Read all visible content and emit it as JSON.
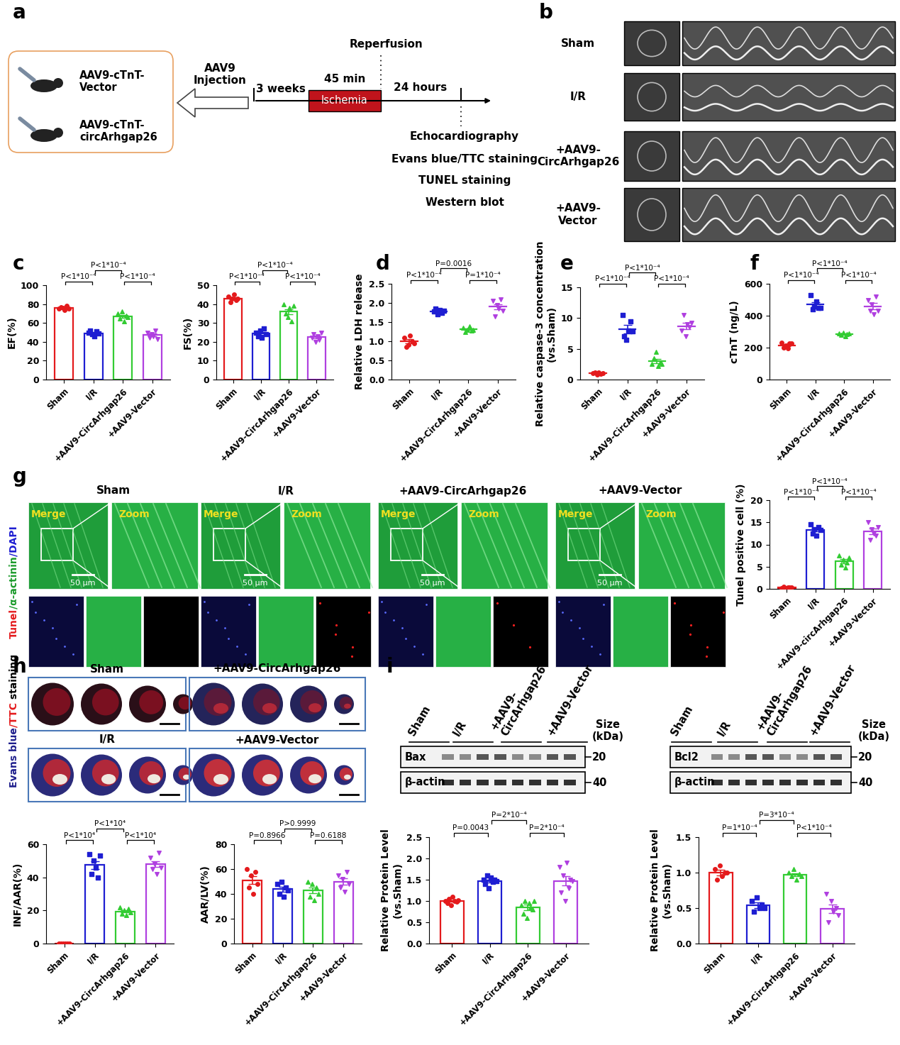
{
  "panel_labels": [
    "a",
    "b",
    "c",
    "d",
    "e",
    "f",
    "g",
    "h",
    "i"
  ],
  "diagram_a": {
    "groups": [
      "AAV9-cTnT-\nVector",
      "AAV9-cTnT-\ncircArhgap26"
    ],
    "injection": "AAV9\nInjection",
    "before": "3 weeks",
    "ischemia_time": "45 min",
    "ischemia": "Ischemia",
    "reperfusion": "Reperfusion",
    "after": "24 hours",
    "readouts": [
      "Echocardiography",
      "Evans blue/TTC staining",
      "TUNEL staining",
      "Western blot"
    ]
  },
  "echo_b": {
    "rows": [
      "Sham",
      "I/R",
      "+AAV9-\nCircArhgap26",
      "+AAV9-\nVector"
    ]
  },
  "tunel_g": {
    "columns": [
      "Sham",
      "I/R",
      "+AAV9-CircArhgap26",
      "+AAV9-Vector"
    ],
    "merge": "Merge",
    "zoom": "Zoom",
    "scale": "50 μm",
    "stain_parts": [
      {
        "text": "Tunel",
        "color": "#E41A1C"
      },
      {
        "text": "/α-actinin",
        "color": "#1a9a2a"
      },
      {
        "text": "/DAPI",
        "color": "#1E1ED2"
      }
    ]
  },
  "hearts_h": {
    "groups": [
      "Sham",
      "+AAV9-CircArhgap26",
      "I/R",
      "+AAV9-Vector"
    ],
    "stain_parts": [
      {
        "text": "Evans blue",
        "color": "#1E1E8C"
      },
      {
        "text": "/TTC",
        "color": "#E41A1C"
      },
      {
        "text": " staining",
        "color": "#000000"
      }
    ]
  },
  "blots_i": [
    {
      "lanes": [
        "Sham",
        "I/R",
        "+AAV9-\nCircArhgap26",
        "+AAV9-Vector"
      ],
      "protein": "Bax",
      "loading": "β-actin",
      "size_title": "Size\n(kDa)",
      "protein_size": "20",
      "loading_size": "40"
    },
    {
      "lanes": [
        "Sham",
        "I/R",
        "+AAV9-\nCircArhgap26",
        "+AAV9-Vector"
      ],
      "protein": "Bcl2",
      "loading": "β-actin",
      "size_title": "Size\n(kDa)",
      "protein_size": "20",
      "loading_size": "40"
    }
  ],
  "chart_data": [
    {
      "type": "bar",
      "ylabel": "EF(%)",
      "categories": [
        "Sham",
        "I/R",
        "+AAV9-CircArhgap26",
        "+AAV9-Vector"
      ],
      "values": [
        76,
        49,
        67,
        47.5
      ],
      "sem": [
        0.8,
        1.0,
        1.7,
        1.4
      ],
      "points": [
        [
          75,
          77,
          76,
          74,
          78,
          75
        ],
        [
          50,
          52,
          48,
          46,
          51,
          49
        ],
        [
          70,
          65,
          72,
          62,
          68,
          66
        ],
        [
          50,
          44,
          48,
          46,
          52,
          43
        ]
      ],
      "colors": [
        "#E41A1C",
        "#1E1ED2",
        "#33CC33",
        "#B040E0"
      ],
      "markers": [
        "circle",
        "square",
        "triangle_up",
        "triangle_down"
      ],
      "ylim": [
        0,
        100
      ],
      "yticks": [
        0,
        20,
        40,
        60,
        80,
        100
      ],
      "grid": false,
      "comparisons": [
        {
          "pair": [
            0,
            1
          ],
          "label": "P<1*10⁻⁴"
        },
        {
          "pair": [
            1,
            2
          ],
          "label": "P<1*10⁻⁴"
        },
        {
          "pair": [
            2,
            3
          ],
          "label": "P<1*10⁻⁴"
        }
      ]
    },
    {
      "type": "bar",
      "ylabel": "FS(%)",
      "categories": [
        "Sham",
        "I/R",
        "+AAV9-CircArhgap26",
        "+AAV9-Vector"
      ],
      "values": [
        43,
        24.5,
        36,
        22.5
      ],
      "sem": [
        0.6,
        0.8,
        1.4,
        0.7
      ],
      "points": [
        [
          44,
          41,
          43,
          45,
          42,
          43
        ],
        [
          25,
          23,
          26,
          22,
          27,
          24
        ],
        [
          40,
          35,
          33,
          38,
          31,
          39
        ],
        [
          22,
          24,
          20,
          23,
          21,
          25
        ]
      ],
      "colors": [
        "#E41A1C",
        "#1E1ED2",
        "#33CC33",
        "#B040E0"
      ],
      "markers": [
        "circle",
        "square",
        "triangle_up",
        "triangle_down"
      ],
      "ylim": [
        0,
        50
      ],
      "yticks": [
        0,
        10,
        20,
        30,
        40,
        50
      ],
      "grid": false,
      "comparisons": [
        {
          "pair": [
            0,
            1
          ],
          "label": "P<1*10⁻⁴"
        },
        {
          "pair": [
            1,
            2
          ],
          "label": "P<1*10⁻⁴"
        },
        {
          "pair": [
            2,
            3
          ],
          "label": "P<1*10⁻⁴"
        }
      ]
    },
    {
      "type": "scatter",
      "ylabel": "Relative LDH release",
      "categories": [
        "Sham",
        "I/R",
        "+AAV9-CircArhgap26",
        "+AAV9-Vector"
      ],
      "values": [
        1.0,
        1.78,
        1.31,
        1.9
      ],
      "sem": [
        0.05,
        0.02,
        0.02,
        0.07
      ],
      "points": [
        [
          1.1,
          0.85,
          0.9,
          1.15,
          1.0,
          0.95
        ],
        [
          1.78,
          1.85,
          1.7,
          1.82,
          1.75,
          1.8
        ],
        [
          1.35,
          1.25,
          1.3,
          1.38,
          1.28,
          1.3
        ],
        [
          2.05,
          1.65,
          1.95,
          1.85,
          2.1,
          1.8
        ]
      ],
      "colors": [
        "#E41A1C",
        "#1E1ED2",
        "#33CC33",
        "#B040E0"
      ],
      "markers": [
        "circle",
        "square",
        "triangle_up",
        "triangle_down"
      ],
      "ylim": [
        0,
        2.5
      ],
      "yticks": [
        {
          "value": 0,
          "label": "0.0"
        },
        0.5,
        {
          "value": 1,
          "label": "1.0"
        },
        1.5,
        {
          "value": 2,
          "label": "2.0"
        },
        2.5
      ],
      "grid": false,
      "comparisons": [
        {
          "pair": [
            0,
            1
          ],
          "label": "P<1*10⁻⁴"
        },
        {
          "pair": [
            1,
            2
          ],
          "label": "P=0.0016"
        },
        {
          "pair": [
            2,
            3
          ],
          "label": "P=1*10⁻⁴"
        }
      ]
    },
    {
      "type": "scatter",
      "ylabel": "Relative caspase-3 concentration\n(vs.Sham)",
      "categories": [
        "Sham",
        "I/R",
        "+AAV9-CircArhgap26",
        "+AAV9-Vector"
      ],
      "values": [
        1.0,
        8.2,
        3.0,
        8.7
      ],
      "sem": [
        0.06,
        0.7,
        0.4,
        0.5
      ],
      "points": [
        [
          1.0,
          1.2,
          0.8,
          1.1,
          0.9,
          1.0
        ],
        [
          10.5,
          7.0,
          6.5,
          8.0,
          9.5,
          7.8
        ],
        [
          2.5,
          3.5,
          4.5,
          2.2,
          2.8,
          2.5
        ],
        [
          8.0,
          10.5,
          7.0,
          9.0,
          8.5,
          9.2
        ]
      ],
      "colors": [
        "#E41A1C",
        "#1E1ED2",
        "#33CC33",
        "#B040E0"
      ],
      "markers": [
        "circle",
        "square",
        "triangle_up",
        "triangle_down"
      ],
      "ylim": [
        0,
        15
      ],
      "yticks": [
        0,
        5,
        10,
        15
      ],
      "grid": false,
      "comparisons": [
        {
          "pair": [
            0,
            1
          ],
          "label": "P<1*10⁻⁴"
        },
        {
          "pair": [
            1,
            2
          ],
          "label": "P<1*10⁻⁴"
        },
        {
          "pair": [
            2,
            3
          ],
          "label": "P<1*10⁻⁴"
        }
      ]
    },
    {
      "type": "scatter",
      "ylabel": "cTnT (ng/L)",
      "categories": [
        "Sham",
        "I/R",
        "+AAV9-CircArhgap26",
        "+AAV9-Vector"
      ],
      "values": [
        215,
        470,
        285,
        460
      ],
      "sem": [
        6,
        14,
        4,
        18
      ],
      "points": [
        [
          230,
          200,
          215,
          195,
          225,
          225
        ],
        [
          530,
          440,
          460,
          490,
          450,
          450
        ],
        [
          290,
          280,
          295,
          270,
          285,
          290
        ],
        [
          500,
          430,
          470,
          410,
          520,
          430
        ]
      ],
      "colors": [
        "#E41A1C",
        "#1E1ED2",
        "#33CC33",
        "#B040E0"
      ],
      "markers": [
        "circle",
        "square",
        "triangle_up",
        "triangle_down"
      ],
      "ylim": [
        0,
        600
      ],
      "yticks": [
        0,
        200,
        400,
        600
      ],
      "grid": false,
      "comparisons": [
        {
          "pair": [
            0,
            1
          ],
          "label": "P<1*10⁻⁴"
        },
        {
          "pair": [
            1,
            2
          ],
          "label": "P<1*10⁻⁴"
        },
        {
          "pair": [
            2,
            3
          ],
          "label": "P<1*10⁻⁴"
        }
      ]
    },
    {
      "type": "bar",
      "ylabel": "Tunel positive cell (%)",
      "categories": [
        "Sham",
        "I/R",
        "+AAV9-circArhgap26",
        "+AAV9-Vector"
      ],
      "values": [
        0.3,
        13.3,
        6.2,
        13.0
      ],
      "sem": [
        0.1,
        0.4,
        0.5,
        0.6
      ],
      "points": [
        [
          0.2,
          0.5,
          0.1,
          0.3,
          0.4,
          0.3
        ],
        [
          14.5,
          12.5,
          13.5,
          12.0,
          14.0,
          13.3
        ],
        [
          7.5,
          5.5,
          6.5,
          4.8,
          6.0,
          7.0
        ],
        [
          15.0,
          11.0,
          13.5,
          12.5,
          12.0,
          14.0
        ]
      ],
      "colors": [
        "#E41A1C",
        "#1E1ED2",
        "#33CC33",
        "#B040E0"
      ],
      "markers": [
        "circle",
        "square",
        "triangle_up",
        "triangle_down"
      ],
      "ylim": [
        0,
        20
      ],
      "yticks": [
        0,
        5,
        10,
        15,
        20
      ],
      "grid": false,
      "comparisons": [
        {
          "pair": [
            0,
            1
          ],
          "label": "P<1*10⁻⁴"
        },
        {
          "pair": [
            1,
            2
          ],
          "label": "P<1*10⁻⁴"
        },
        {
          "pair": [
            2,
            3
          ],
          "label": "P<1*10⁻⁴"
        }
      ]
    },
    {
      "type": "bar",
      "ylabel": "INF/AAR(%)",
      "categories": [
        "Sham",
        "I/R",
        "+AAV9-CircArhgap26",
        "+AAV9-Vector"
      ],
      "values": [
        0,
        47.5,
        19.5,
        48
      ],
      "sem": [
        0,
        2.3,
        0.8,
        1.9
      ],
      "points": [
        [
          0,
          0,
          0,
          0,
          0,
          0
        ],
        [
          54,
          42,
          50,
          46,
          40,
          53
        ],
        [
          22,
          18,
          20,
          17,
          21,
          19
        ],
        [
          52,
          45,
          48,
          42,
          55,
          46
        ]
      ],
      "colors": [
        "#E41A1C",
        "#1E1ED2",
        "#33CC33",
        "#B040E0"
      ],
      "markers": [
        "circle",
        "square",
        "triangle_up",
        "triangle_down"
      ],
      "ylim": [
        0,
        60
      ],
      "yticks": [
        0,
        20,
        40,
        60
      ],
      "grid": false,
      "comparisons": [
        {
          "pair": [
            0,
            1
          ],
          "label": "P<1*10⁴"
        },
        {
          "pair": [
            1,
            2
          ],
          "label": "P<1*10⁴"
        },
        {
          "pair": [
            2,
            3
          ],
          "label": "P<1*10⁴"
        }
      ]
    },
    {
      "type": "bar",
      "ylabel": "AAR/LV(%)",
      "categories": [
        "Sham",
        "I/R",
        "+AAV9-CircArhgap26",
        "+AAV9-Vector"
      ],
      "values": [
        51,
        44,
        42.7,
        50
      ],
      "sem": [
        3.2,
        2.0,
        2.3,
        2.4
      ],
      "points": [
        [
          60,
          45,
          55,
          40,
          58,
          48
        ],
        [
          48,
          40,
          50,
          38,
          45,
          43
        ],
        [
          50,
          38,
          48,
          35,
          45,
          40
        ],
        [
          55,
          45,
          52,
          42,
          58,
          48
        ]
      ],
      "colors": [
        "#E41A1C",
        "#1E1ED2",
        "#33CC33",
        "#B040E0"
      ],
      "markers": [
        "circle",
        "square",
        "triangle_up",
        "triangle_down"
      ],
      "ylim": [
        0,
        80
      ],
      "yticks": [
        0,
        20,
        40,
        60,
        80
      ],
      "grid": false,
      "comparisons": [
        {
          "pair": [
            0,
            1
          ],
          "label": "P=0.8966"
        },
        {
          "pair": [
            1,
            2
          ],
          "label": "P>0.9999"
        },
        {
          "pair": [
            2,
            3
          ],
          "label": "P=0.6188"
        }
      ]
    },
    {
      "type": "bar",
      "ylabel": "Relative Protein Level\n(vs.Sham)",
      "categories": [
        "Sham",
        "I/R",
        "+AAV9-CircArhgap26",
        "+AAV9-Vector"
      ],
      "values": [
        1.0,
        1.47,
        0.85,
        1.47
      ],
      "sem": [
        0.02,
        0.03,
        0.06,
        0.11
      ],
      "points": [
        [
          1.0,
          0.95,
          1.05,
          0.9,
          1.1,
          1.0,
          0.98,
          1.02
        ],
        [
          1.5,
          1.4,
          1.6,
          1.3,
          1.55,
          1.45,
          1.5,
          1.46
        ],
        [
          0.9,
          0.7,
          1.0,
          0.6,
          0.95,
          0.85,
          0.8,
          1.0
        ],
        [
          1.8,
          1.2,
          1.6,
          1.0,
          1.9,
          1.3,
          1.5,
          1.46
        ]
      ],
      "colors": [
        "#E41A1C",
        "#1E1ED2",
        "#33CC33",
        "#B040E0"
      ],
      "markers": [
        "circle",
        "square",
        "triangle_up",
        "triangle_down"
      ],
      "ylim": [
        0,
        2.5
      ],
      "yticks": [
        {
          "value": 0,
          "label": "0.0"
        },
        0.5,
        {
          "value": 1,
          "label": "1.0"
        },
        1.5,
        {
          "value": 2,
          "label": "2.0"
        },
        2.5
      ],
      "grid": false,
      "comparisons": [
        {
          "pair": [
            0,
            1
          ],
          "label": "P=0.0043"
        },
        {
          "pair": [
            1,
            2
          ],
          "label": "P=2*10⁻⁴"
        },
        {
          "pair": [
            2,
            3
          ],
          "label": "P=2*10⁻⁴"
        }
      ]
    },
    {
      "type": "bar",
      "ylabel": "Relative Protein Level\n(vs.Sham)",
      "categories": [
        "Sham",
        "I/R",
        "+AAV9-CircArhgap26",
        "+AAV9-Vector"
      ],
      "values": [
        1.0,
        0.54,
        0.97,
        0.49
      ],
      "sem": [
        0.04,
        0.04,
        0.02,
        0.06
      ],
      "points": [
        [
          1.05,
          0.9,
          1.1,
          0.95,
          1.0,
          1.0
        ],
        [
          0.6,
          0.45,
          0.65,
          0.5,
          0.55,
          0.5
        ],
        [
          1.0,
          0.95,
          1.05,
          0.9,
          0.98,
          0.95
        ],
        [
          0.7,
          0.3,
          0.6,
          0.45,
          0.5,
          0.4
        ]
      ],
      "colors": [
        "#E41A1C",
        "#1E1ED2",
        "#33CC33",
        "#B040E0"
      ],
      "markers": [
        "circle",
        "square",
        "triangle_up",
        "triangle_down"
      ],
      "ylim": [
        0,
        1.5
      ],
      "yticks": [
        {
          "value": 0,
          "label": "0.0"
        },
        0.5,
        {
          "value": 1,
          "label": "1.0"
        },
        1.5
      ],
      "grid": false,
      "comparisons": [
        {
          "pair": [
            0,
            1
          ],
          "label": "P=1*10⁻⁴"
        },
        {
          "pair": [
            1,
            2
          ],
          "label": "P=3*10⁻⁴"
        },
        {
          "pair": [
            2,
            3
          ],
          "label": "P<1*10⁻⁴"
        }
      ]
    }
  ]
}
